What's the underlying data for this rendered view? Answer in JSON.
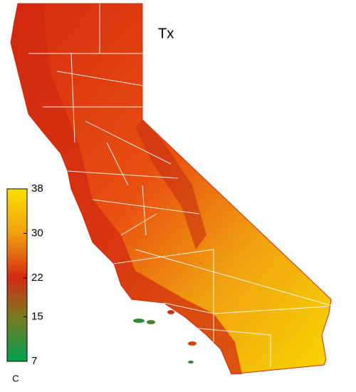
{
  "title": "Tx",
  "colorbar": {
    "range": [
      7,
      38
    ],
    "ticks": [
      7,
      15,
      22,
      30,
      38
    ],
    "colors": [
      "#00a050",
      "#7a7a20",
      "#d42a10",
      "#f0a010",
      "#f8e000"
    ],
    "unit": "C"
  }
}
